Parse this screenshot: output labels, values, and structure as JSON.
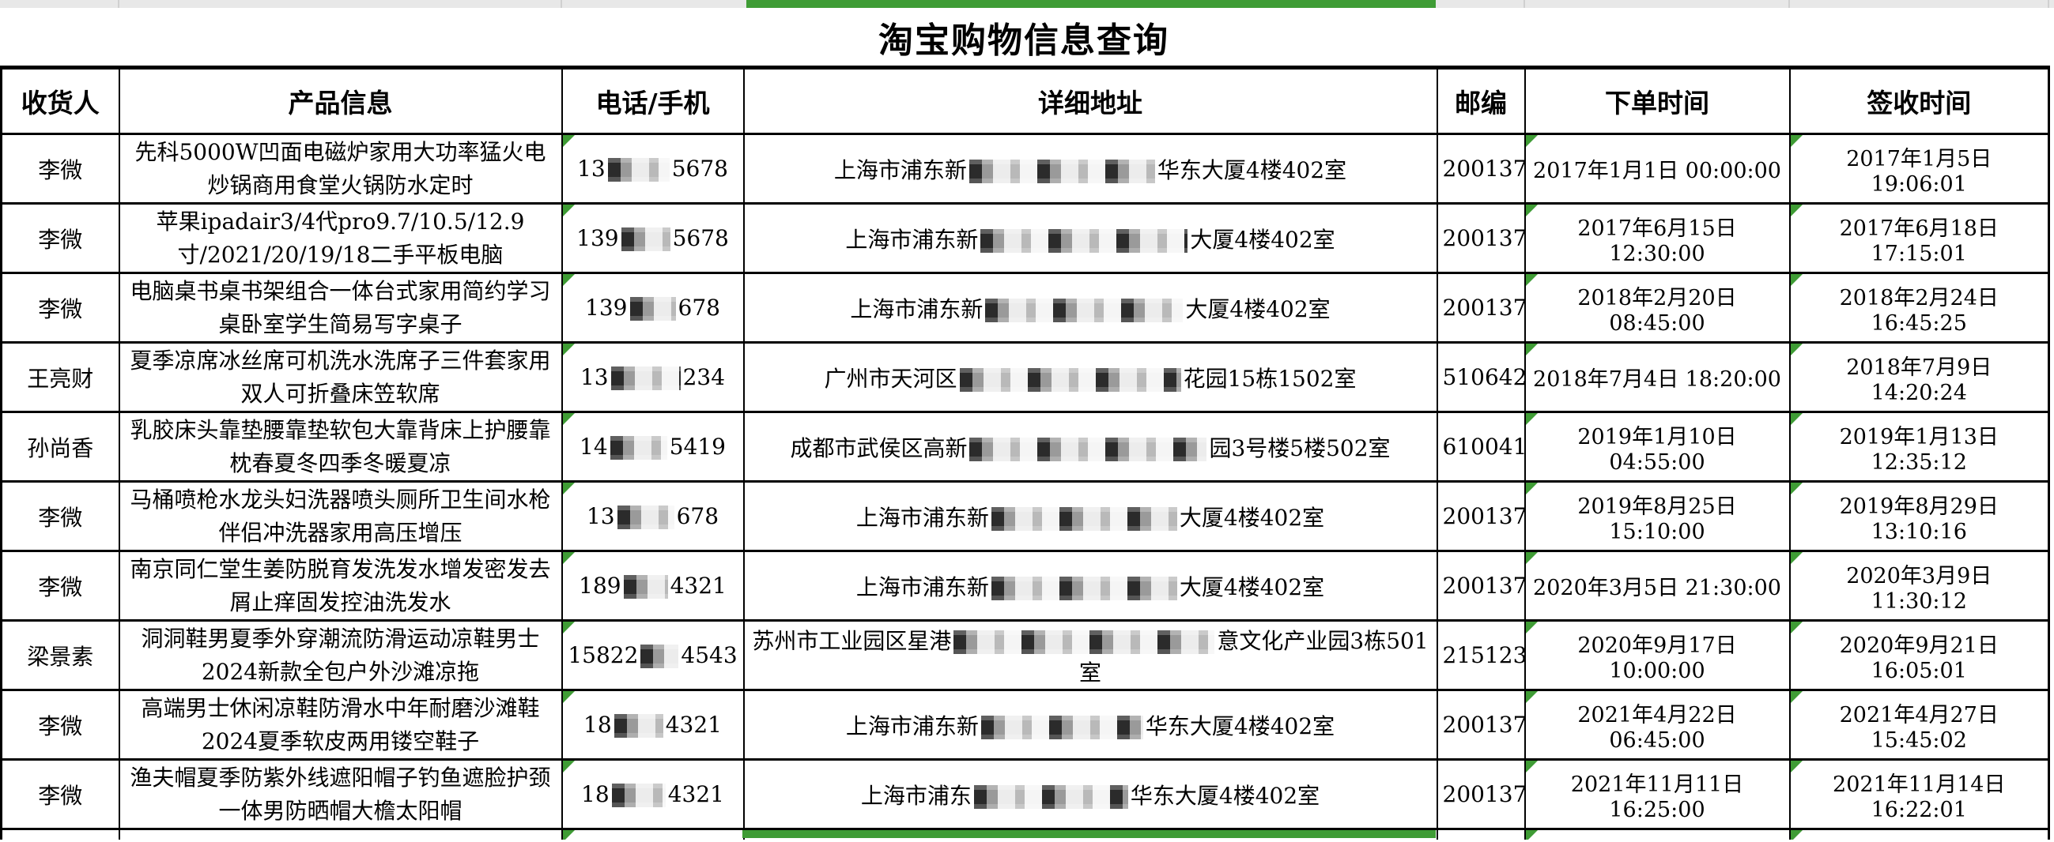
{
  "title": "淘宝购物信息查询",
  "columns": [
    "收货人",
    "产品信息",
    "电话/手机",
    "详细地址",
    "邮编",
    "下单时间",
    "签收时间"
  ],
  "colors": {
    "selection_green": "#3f9c35",
    "grid_line": "#000000",
    "top_strip_gray": "#e8e8e8"
  },
  "rows": [
    {
      "recipient": "李微",
      "product": "先科5000W凹面电磁炉家用大功率猛火电炒锅商用食堂火锅防水定时",
      "phone_pre": "13",
      "phone_w": 78,
      "phone_suf": "5678",
      "addr_pre": "上海市浦东新",
      "addr_w": 235,
      "addr_suf": "华东大厦4楼402室",
      "zip": "200137",
      "order_time": "2017年1月1日 00:00:00",
      "sign_time": "2017年1月5日 19:06:01"
    },
    {
      "recipient": "李微",
      "product": "苹果ipadair3/4代pro9.7/10.5/12.9寸/2021/20/19/18二手平板电脑",
      "phone_pre": "139",
      "phone_w": 62,
      "phone_suf": "5678",
      "addr_pre": "上海市浦东新",
      "addr_w": 262,
      "addr_suf": "大厦4楼402室",
      "zip": "200137",
      "order_time": "2017年6月15日 12:30:00",
      "sign_time": "2017年6月18日 17:15:01"
    },
    {
      "recipient": "李微",
      "product": "电脑桌书桌书架组合一体台式家用简约学习桌卧室学生简易写字桌子",
      "phone_pre": "139",
      "phone_w": 58,
      "phone_suf": "678",
      "addr_pre": "上海市浦东新",
      "addr_w": 250,
      "addr_suf": "大厦4楼402室",
      "zip": "200137",
      "order_time": "2018年2月20日 08:45:00",
      "sign_time": "2018年2月24日 16:45:25"
    },
    {
      "recipient": "王亮财",
      "product": "夏季凉席冰丝席可机洗水洗席子三件套家用双人可折叠床笠软席",
      "phone_pre": "13",
      "phone_w": 88,
      "phone_suf": "234",
      "addr_pre": "广州市天河区",
      "addr_w": 280,
      "addr_suf": "花园15栋1502室",
      "zip": "510642",
      "order_time": "2018年7月4日 18:20:00",
      "sign_time": "2018年7月9日 14:20:24"
    },
    {
      "recipient": "孙尚香",
      "product": "乳胶床头靠垫腰靠垫软包大靠背床上护腰靠枕春夏冬四季冬暖夏凉",
      "phone_pre": "14",
      "phone_w": 72,
      "phone_suf": "5419",
      "addr_pre": "成都市武侯区高新",
      "addr_w": 300,
      "addr_suf": "园3号楼5楼502室",
      "zip": "610041",
      "order_time": "2019年1月10日 04:55:00",
      "sign_time": "2019年1月13日 12:35:12"
    },
    {
      "recipient": "李微",
      "product": "马桶喷枪水龙头妇洗器喷头厕所卫生间水枪伴侣冲洗器家用高压增压",
      "phone_pre": "13",
      "phone_w": 72,
      "phone_suf": "678",
      "addr_pre": "上海市浦东新",
      "addr_w": 235,
      "addr_suf": "大厦4楼402室",
      "zip": "200137",
      "order_time": "2019年8月25日 15:10:00",
      "sign_time": "2019年8月29日 13:10:16"
    },
    {
      "recipient": "李微",
      "product": "南京同仁堂生姜防脱育发洗发水增发密发去屑止痒固发控油洗发水",
      "phone_pre": "189",
      "phone_w": 56,
      "phone_suf": "4321",
      "addr_pre": "上海市浦东新",
      "addr_w": 235,
      "addr_suf": "大厦4楼402室",
      "zip": "200137",
      "order_time": "2020年3月5日 21:30:00",
      "sign_time": "2020年3月9日 11:30:12"
    },
    {
      "recipient": "梁景素",
      "product": "洞洞鞋男夏季外穿潮流防滑运动凉鞋男士2024新款全包户外沙滩凉拖",
      "phone_pre": "15822",
      "phone_w": 48,
      "phone_suf": "4543",
      "addr_pre": "苏州市工业园区星港",
      "addr_w": 330,
      "addr_suf": "意文化产业园3栋501室",
      "zip": "215123",
      "order_time": "2020年9月17日 10:00:00",
      "sign_time": "2020年9月21日 16:05:01"
    },
    {
      "recipient": "李微",
      "product": "高端男士休闲凉鞋防滑水中年耐磨沙滩鞋2024夏季软皮两用镂空鞋子",
      "phone_pre": "18",
      "phone_w": 62,
      "phone_suf": "4321",
      "addr_pre": "上海市浦东新",
      "addr_w": 205,
      "addr_suf": "华东大厦4楼402室",
      "zip": "200137",
      "order_time": "2021年4月22日 06:45:00",
      "sign_time": "2021年4月27日 15:45:02"
    },
    {
      "recipient": "李微",
      "product": "渔夫帽夏季防紫外线遮阳帽子钓鱼遮脸护颈一体男防晒帽大檐太阳帽",
      "phone_pre": "18",
      "phone_w": 68,
      "phone_suf": "4321",
      "addr_pre": "上海市浦东",
      "addr_w": 195,
      "addr_suf": "华东大厦4楼402室",
      "zip": "200137",
      "order_time": "2021年11月11日 16:25:00",
      "sign_time": "2021年11月14日 16:22:01"
    }
  ]
}
